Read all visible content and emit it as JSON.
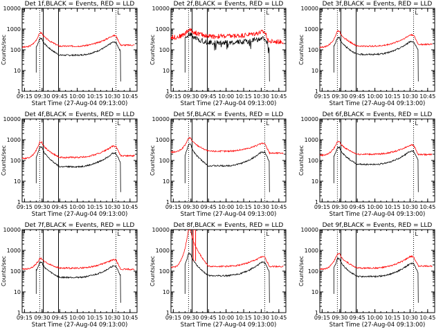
{
  "chart_data": {
    "type": "line",
    "layout": "3x3 grid",
    "xlabel": "Start Time (27-Aug-04 09:13:00)",
    "ylabel": "Counts/sec",
    "x_tick_labels": [
      "09:15",
      "09:30",
      "09:45",
      "10:00",
      "10:15",
      "10:30",
      "10:45"
    ],
    "x_ticks_minutes": [
      2,
      17,
      32,
      47,
      62,
      77,
      92
    ],
    "x_range_minutes": [
      0,
      98
    ],
    "y_scale": "log",
    "y_range": [
      1,
      10000
    ],
    "y_tick_labels": [
      "1",
      "10",
      "100",
      "1000",
      "10000"
    ],
    "markers": {
      "dotted_lines_minutes": [
        15,
        80
      ],
      "solid_lines_minutes": [
        18,
        31
      ],
      "corner_mark": "L"
    },
    "series_colors": {
      "Events": "#000000",
      "LLD": "#ff0000"
    },
    "panels": [
      {
        "title": "Det 1f,BLACK = Events, RED = LLD",
        "baseline_events": 55,
        "baseline_lld": 150,
        "peak_events": 350,
        "peak_lld": 650,
        "hump_events": 230,
        "hump_lld": 480,
        "events_dropout": true,
        "noisy": false,
        "spikes": false
      },
      {
        "title": "Det 2f,BLACK = Events, RED = LLD",
        "baseline_events": 220,
        "baseline_lld": 450,
        "peak_events": 550,
        "peak_lld": 900,
        "hump_events": 350,
        "hump_lld": 700,
        "events_dropout": true,
        "noisy": true,
        "spikes": false
      },
      {
        "title": "Det 3f,BLACK = Events, RED = LLD",
        "baseline_events": 60,
        "baseline_lld": 150,
        "peak_events": 380,
        "peak_lld": 800,
        "hump_events": 250,
        "hump_lld": 520,
        "events_dropout": true,
        "noisy": false,
        "spikes": false
      },
      {
        "title": "Det 4f,BLACK = Events, RED = LLD",
        "baseline_events": 50,
        "baseline_lld": 140,
        "peak_events": 450,
        "peak_lld": 750,
        "hump_events": 220,
        "hump_lld": 480,
        "events_dropout": true,
        "noisy": false,
        "spikes": false
      },
      {
        "title": "Det 5f,BLACK = Events, RED = LLD",
        "baseline_events": 55,
        "baseline_lld": 280,
        "peak_events": 600,
        "peak_lld": 1200,
        "hump_events": 250,
        "hump_lld": 650,
        "events_dropout": true,
        "noisy": false,
        "spikes": false
      },
      {
        "title": "Det 6f,BLACK = Events, RED = LLD",
        "baseline_events": 65,
        "baseline_lld": 200,
        "peak_events": 420,
        "peak_lld": 800,
        "hump_events": 280,
        "hump_lld": 550,
        "events_dropout": true,
        "noisy": false,
        "spikes": false
      },
      {
        "title": "Det 7f,BLACK = Events, RED = LLD",
        "baseline_events": 50,
        "baseline_lld": 140,
        "peak_events": 260,
        "peak_lld": 400,
        "hump_events": 170,
        "hump_lld": 350,
        "events_dropout": true,
        "noisy": false,
        "spikes": false
      },
      {
        "title": "Det 8f,BLACK = Events, RED = LLD",
        "baseline_events": 60,
        "baseline_lld": 170,
        "peak_events": 700,
        "peak_lld": 10000,
        "hump_events": 260,
        "hump_lld": 480,
        "events_dropout": true,
        "noisy": false,
        "spikes": true
      },
      {
        "title": "Det 9f,BLACK = Events, RED = LLD",
        "baseline_events": 55,
        "baseline_lld": 140,
        "peak_events": 400,
        "peak_lld": 700,
        "hump_events": 230,
        "hump_lld": 500,
        "events_dropout": true,
        "noisy": false,
        "spikes": false
      }
    ]
  }
}
